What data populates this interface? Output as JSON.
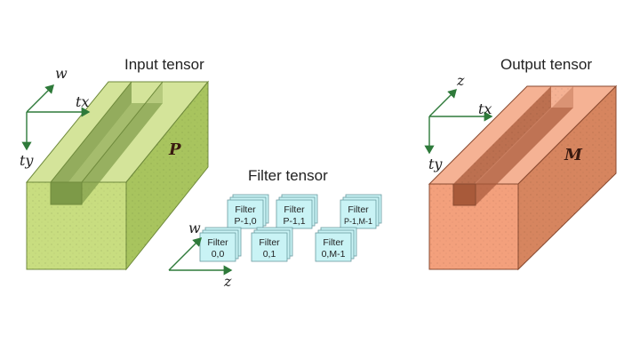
{
  "input": {
    "title": "Input tensor",
    "depth_label": "P",
    "colors": {
      "front": "#c8dd80",
      "top": "#d4e49a",
      "right": "#a8c45e",
      "groove": "#7d9a48",
      "edge": "#6f8a3c"
    }
  },
  "output": {
    "title": "Output tensor",
    "depth_label": "M",
    "colors": {
      "front": "#f3a07c",
      "top": "#f5b294",
      "right": "#d6855f",
      "groove": "#a85a3a",
      "edge": "#8a4a30"
    }
  },
  "filter": {
    "title": "Filter tensor",
    "back_row": [
      {
        "line1": "Filter",
        "line2": "P-1,0"
      },
      {
        "line1": "Filter",
        "line2": "P-1,1"
      },
      {
        "line1": "Filter",
        "line2": "P-1,M-1"
      }
    ],
    "front_row": [
      {
        "line1": "Filter",
        "line2": "0,0"
      },
      {
        "line1": "Filter",
        "line2": "0,1"
      },
      {
        "line1": "Filter",
        "line2": "0,M-1"
      }
    ],
    "card_color": "#c9f3f5"
  },
  "axes": {
    "input": {
      "a": "w",
      "b": "tx",
      "c": "ty"
    },
    "output": {
      "a": "z",
      "b": "tx",
      "c": "ty"
    },
    "filter": {
      "a": "w",
      "b": "z"
    },
    "color": "#2e7a3a"
  }
}
